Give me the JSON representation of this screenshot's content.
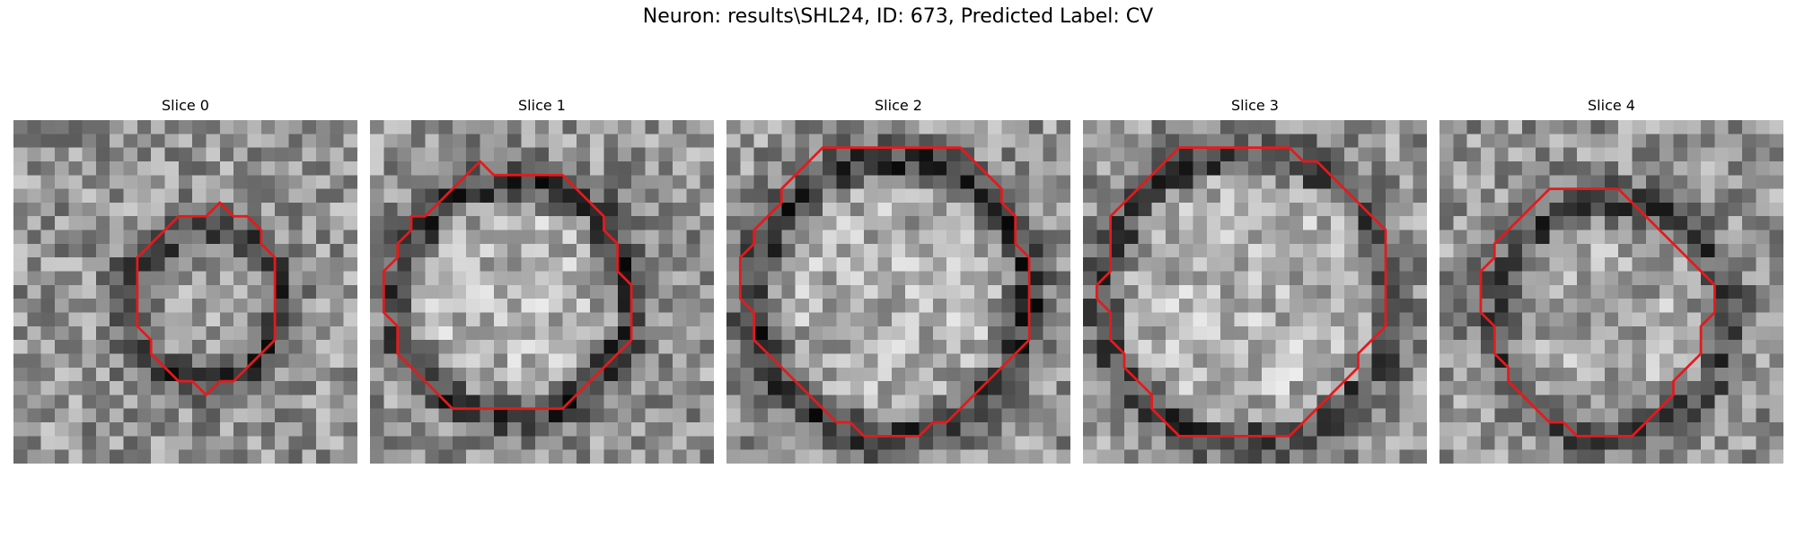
{
  "title": "Neuron: results\\SHL24, ID: 673, Predicted Label: CV",
  "contour_color": "#e41a1c",
  "panels": [
    {
      "label": "Slice 0",
      "contour": [
        [
          14,
          7
        ],
        [
          15,
          6
        ],
        [
          16,
          7
        ],
        [
          17,
          7
        ],
        [
          18,
          8
        ],
        [
          18,
          9
        ],
        [
          19,
          10
        ],
        [
          19,
          16
        ],
        [
          18,
          17
        ],
        [
          17,
          18
        ],
        [
          16,
          19
        ],
        [
          15,
          19
        ],
        [
          14,
          20
        ],
        [
          13,
          19
        ],
        [
          12,
          19
        ],
        [
          11,
          18
        ],
        [
          10,
          17
        ],
        [
          10,
          16
        ],
        [
          9,
          15
        ],
        [
          9,
          10
        ],
        [
          10,
          9
        ],
        [
          11,
          8
        ],
        [
          12,
          7
        ],
        [
          13,
          7
        ]
      ]
    },
    {
      "label": "Slice 1",
      "contour": [
        [
          9,
          4
        ],
        [
          14,
          4
        ],
        [
          15,
          5
        ],
        [
          16,
          6
        ],
        [
          17,
          7
        ],
        [
          17,
          8
        ],
        [
          18,
          9
        ],
        [
          18,
          11
        ],
        [
          19,
          12
        ],
        [
          19,
          16
        ],
        [
          18,
          17
        ],
        [
          17,
          18
        ],
        [
          16,
          19
        ],
        [
          15,
          20
        ],
        [
          14,
          21
        ],
        [
          9,
          21
        ],
        [
          6,
          21
        ],
        [
          5,
          20
        ],
        [
          4,
          19
        ],
        [
          3,
          18
        ],
        [
          2,
          17
        ],
        [
          2,
          15
        ],
        [
          1,
          14
        ],
        [
          1,
          11
        ],
        [
          2,
          10
        ],
        [
          2,
          9
        ],
        [
          3,
          8
        ],
        [
          3,
          7
        ],
        [
          4,
          7
        ],
        [
          5,
          6
        ],
        [
          6,
          5
        ],
        [
          7,
          4
        ],
        [
          8,
          3
        ]
      ]
    },
    {
      "label": "Slice 2",
      "contour": [
        [
          8,
          2
        ],
        [
          17,
          2
        ],
        [
          18,
          3
        ],
        [
          19,
          4
        ],
        [
          20,
          5
        ],
        [
          20,
          6
        ],
        [
          21,
          7
        ],
        [
          21,
          9
        ],
        [
          22,
          10
        ],
        [
          22,
          16
        ],
        [
          21,
          17
        ],
        [
          20,
          18
        ],
        [
          19,
          19
        ],
        [
          18,
          20
        ],
        [
          17,
          21
        ],
        [
          16,
          22
        ],
        [
          15,
          22
        ],
        [
          14,
          23
        ],
        [
          12,
          23
        ],
        [
          10,
          23
        ],
        [
          9,
          22
        ],
        [
          8,
          22
        ],
        [
          7,
          21
        ],
        [
          6,
          20
        ],
        [
          5,
          19
        ],
        [
          4,
          18
        ],
        [
          3,
          17
        ],
        [
          2,
          16
        ],
        [
          2,
          14
        ],
        [
          1,
          13
        ],
        [
          1,
          10
        ],
        [
          2,
          9
        ],
        [
          2,
          8
        ],
        [
          3,
          7
        ],
        [
          4,
          6
        ],
        [
          4,
          5
        ],
        [
          5,
          4
        ],
        [
          6,
          3
        ],
        [
          7,
          2
        ]
      ]
    },
    {
      "label": "Slice 3",
      "contour": [
        [
          7,
          2
        ],
        [
          15,
          2
        ],
        [
          16,
          3
        ],
        [
          17,
          3
        ],
        [
          18,
          4
        ],
        [
          19,
          5
        ],
        [
          20,
          6
        ],
        [
          21,
          7
        ],
        [
          22,
          8
        ],
        [
          22,
          15
        ],
        [
          21,
          16
        ],
        [
          20,
          17
        ],
        [
          20,
          18
        ],
        [
          19,
          19
        ],
        [
          18,
          20
        ],
        [
          17,
          21
        ],
        [
          16,
          22
        ],
        [
          15,
          23
        ],
        [
          7,
          23
        ],
        [
          6,
          22
        ],
        [
          5,
          21
        ],
        [
          5,
          20
        ],
        [
          4,
          19
        ],
        [
          3,
          18
        ],
        [
          3,
          17
        ],
        [
          2,
          16
        ],
        [
          2,
          14
        ],
        [
          1,
          13
        ],
        [
          1,
          12
        ],
        [
          2,
          11
        ],
        [
          2,
          7
        ],
        [
          3,
          6
        ],
        [
          4,
          5
        ],
        [
          5,
          4
        ],
        [
          6,
          3
        ]
      ]
    },
    {
      "label": "Slice 4",
      "contour": [
        [
          8,
          5
        ],
        [
          13,
          5
        ],
        [
          14,
          6
        ],
        [
          15,
          7
        ],
        [
          16,
          8
        ],
        [
          17,
          9
        ],
        [
          18,
          10
        ],
        [
          19,
          11
        ],
        [
          20,
          12
        ],
        [
          20,
          14
        ],
        [
          19,
          15
        ],
        [
          19,
          17
        ],
        [
          18,
          18
        ],
        [
          17,
          19
        ],
        [
          17,
          20
        ],
        [
          16,
          21
        ],
        [
          15,
          22
        ],
        [
          14,
          23
        ],
        [
          12,
          23
        ],
        [
          10,
          23
        ],
        [
          9,
          22
        ],
        [
          8,
          22
        ],
        [
          7,
          21
        ],
        [
          6,
          20
        ],
        [
          5,
          19
        ],
        [
          5,
          18
        ],
        [
          4,
          17
        ],
        [
          4,
          15
        ],
        [
          3,
          14
        ],
        [
          3,
          11
        ],
        [
          4,
          10
        ],
        [
          4,
          9
        ],
        [
          5,
          8
        ],
        [
          6,
          7
        ],
        [
          7,
          6
        ]
      ]
    }
  ]
}
